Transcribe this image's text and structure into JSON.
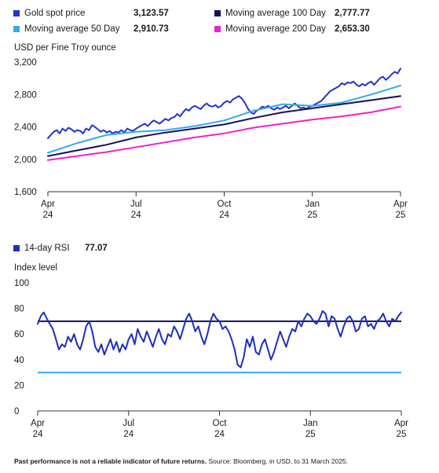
{
  "colors": {
    "gold_spot": "#2233cc",
    "ma50": "#33aaee",
    "ma100": "#12125a",
    "ma200": "#ee22cc",
    "rsi": "#1e2dbf",
    "rsi_upper": "#12125a",
    "rsi_lower": "#33aaee",
    "axis": "#333333"
  },
  "footnote": {
    "bold": "Past performance is not a reliable indicator of future returns.",
    "text": " Source: Bloomberg, in USD, to 31 March 2025."
  },
  "chart_data": [
    {
      "type": "line",
      "title": "",
      "ylabel": "USD per Fine Troy ounce",
      "ylim": [
        1600,
        3200
      ],
      "yticks": [
        "1,600",
        "2,000",
        "2,400",
        "2,800",
        "3,200"
      ],
      "ytick_values": [
        1600,
        2000,
        2400,
        2800,
        3200
      ],
      "xlim": [
        0,
        12
      ],
      "xticks": [
        {
          "x": 0,
          "label": [
            "Apr",
            "24"
          ]
        },
        {
          "x": 3,
          "label": [
            "Jul",
            "24"
          ]
        },
        {
          "x": 6,
          "label": [
            "Oct",
            "24"
          ]
        },
        {
          "x": 9,
          "label": [
            "Jan",
            "25"
          ]
        },
        {
          "x": 12,
          "label": [
            "Apr",
            "25"
          ]
        }
      ],
      "grid": false,
      "legend": [
        {
          "name": "Gold spot price",
          "value": "3,123.57",
          "color_key": "gold_spot"
        },
        {
          "name": "Moving average 100 Day",
          "value": "2,777.77",
          "color_key": "ma100"
        },
        {
          "name": "Moving average 50 Day",
          "value": "2,910.73",
          "color_key": "ma50"
        },
        {
          "name": "Moving average 200 Day",
          "value": "2,653.30",
          "color_key": "ma200"
        }
      ],
      "series": [
        {
          "key": "gold",
          "color_key": "gold_spot",
          "width": 2,
          "x": [
            0,
            0.1,
            0.2,
            0.3,
            0.4,
            0.5,
            0.6,
            0.7,
            0.8,
            0.9,
            1.0,
            1.1,
            1.2,
            1.3,
            1.4,
            1.5,
            1.6,
            1.7,
            1.8,
            1.9,
            2.0,
            2.1,
            2.2,
            2.3,
            2.4,
            2.5,
            2.6,
            2.7,
            2.8,
            2.9,
            3.0,
            3.1,
            3.2,
            3.3,
            3.4,
            3.5,
            3.6,
            3.7,
            3.8,
            3.9,
            4.0,
            4.1,
            4.2,
            4.3,
            4.4,
            4.5,
            4.6,
            4.7,
            4.8,
            4.9,
            5.0,
            5.1,
            5.2,
            5.3,
            5.4,
            5.5,
            5.6,
            5.7,
            5.8,
            5.9,
            6.0,
            6.1,
            6.2,
            6.3,
            6.4,
            6.5,
            6.6,
            6.7,
            6.8,
            6.9,
            7.0,
            7.1,
            7.2,
            7.3,
            7.4,
            7.5,
            7.6,
            7.7,
            7.8,
            7.9,
            8.0,
            8.1,
            8.2,
            8.3,
            8.4,
            8.5,
            8.6,
            8.7,
            8.8,
            8.9,
            9.0,
            9.1,
            9.2,
            9.3,
            9.4,
            9.5,
            9.6,
            9.7,
            9.8,
            9.9,
            10.0,
            10.1,
            10.2,
            10.3,
            10.4,
            10.5,
            10.6,
            10.7,
            10.8,
            10.9,
            11.0,
            11.1,
            11.2,
            11.3,
            11.4,
            11.5,
            11.6,
            11.7,
            11.8,
            11.9,
            12.0
          ],
          "y": [
            2260,
            2300,
            2340,
            2360,
            2320,
            2380,
            2350,
            2390,
            2370,
            2340,
            2360,
            2350,
            2320,
            2380,
            2360,
            2420,
            2400,
            2370,
            2340,
            2360,
            2330,
            2350,
            2320,
            2340,
            2330,
            2360,
            2330,
            2380,
            2360,
            2350,
            2380,
            2400,
            2420,
            2440,
            2410,
            2450,
            2480,
            2460,
            2440,
            2470,
            2500,
            2480,
            2510,
            2520,
            2560,
            2530,
            2580,
            2620,
            2600,
            2640,
            2660,
            2640,
            2620,
            2660,
            2690,
            2660,
            2650,
            2670,
            2640,
            2660,
            2700,
            2720,
            2700,
            2740,
            2760,
            2780,
            2750,
            2700,
            2630,
            2580,
            2560,
            2600,
            2620,
            2650,
            2640,
            2660,
            2630,
            2610,
            2640,
            2620,
            2640,
            2660,
            2630,
            2660,
            2690,
            2660,
            2630,
            2640,
            2620,
            2650,
            2660,
            2680,
            2700,
            2720,
            2760,
            2800,
            2840,
            2860,
            2880,
            2900,
            2940,
            2920,
            2950,
            2940,
            2960,
            2920,
            2900,
            2930,
            2910,
            2940,
            2960,
            2920,
            2960,
            3000,
            3020,
            2980,
            3010,
            3050,
            3080,
            3060,
            3120
          ]
        },
        {
          "key": "ma50",
          "color_key": "ma50",
          "width": 2,
          "x": [
            0,
            1,
            2,
            3,
            4,
            5,
            6,
            7,
            8,
            9,
            10,
            11,
            12
          ],
          "y": [
            2080,
            2200,
            2300,
            2340,
            2360,
            2410,
            2480,
            2600,
            2680,
            2660,
            2700,
            2800,
            2910
          ]
        },
        {
          "key": "ma100",
          "color_key": "ma100",
          "width": 2,
          "x": [
            0,
            1,
            2,
            3,
            4,
            5,
            6,
            7,
            8,
            9,
            10,
            11,
            12
          ],
          "y": [
            2040,
            2110,
            2180,
            2270,
            2330,
            2380,
            2430,
            2510,
            2580,
            2630,
            2680,
            2730,
            2780
          ]
        },
        {
          "key": "ma200",
          "color_key": "ma200",
          "width": 2,
          "x": [
            0,
            1,
            2,
            3,
            4,
            5,
            6,
            7,
            8,
            9,
            10,
            11,
            12
          ],
          "y": [
            1990,
            2040,
            2090,
            2150,
            2210,
            2270,
            2320,
            2390,
            2440,
            2490,
            2530,
            2580,
            2650
          ]
        }
      ]
    },
    {
      "type": "line",
      "title": "",
      "ylabel": "Index level",
      "ylim": [
        0,
        100
      ],
      "yticks": [
        "0",
        "20",
        "40",
        "60",
        "80",
        "100"
      ],
      "ytick_values": [
        0,
        20,
        40,
        60,
        80,
        100
      ],
      "xlim": [
        0,
        12
      ],
      "xticks": [
        {
          "x": 0,
          "label": [
            "Apr",
            "24"
          ]
        },
        {
          "x": 3,
          "label": [
            "Jul",
            "24"
          ]
        },
        {
          "x": 6,
          "label": [
            "Oct",
            "24"
          ]
        },
        {
          "x": 9,
          "label": [
            "Jan",
            "25"
          ]
        },
        {
          "x": 12,
          "label": [
            "Apr",
            "25"
          ]
        }
      ],
      "grid": false,
      "legend": [
        {
          "name": "14-day RSI",
          "value": "77.07",
          "color_key": "rsi"
        }
      ],
      "hlines": [
        {
          "y": 70,
          "color_key": "rsi_upper"
        },
        {
          "y": 30,
          "color_key": "rsi_lower"
        }
      ],
      "series": [
        {
          "key": "rsi",
          "color_key": "rsi",
          "width": 2,
          "x": [
            0,
            0.1,
            0.2,
            0.3,
            0.4,
            0.5,
            0.6,
            0.7,
            0.8,
            0.9,
            1.0,
            1.1,
            1.2,
            1.3,
            1.4,
            1.5,
            1.6,
            1.7,
            1.8,
            1.9,
            2.0,
            2.1,
            2.2,
            2.3,
            2.4,
            2.5,
            2.6,
            2.7,
            2.8,
            2.9,
            3.0,
            3.1,
            3.2,
            3.3,
            3.4,
            3.5,
            3.6,
            3.7,
            3.8,
            3.9,
            4.0,
            4.1,
            4.2,
            4.3,
            4.4,
            4.5,
            4.6,
            4.7,
            4.8,
            4.9,
            5.0,
            5.1,
            5.2,
            5.3,
            5.4,
            5.5,
            5.6,
            5.7,
            5.8,
            5.9,
            6.0,
            6.1,
            6.2,
            6.3,
            6.4,
            6.5,
            6.6,
            6.7,
            6.8,
            6.9,
            7.0,
            7.1,
            7.2,
            7.3,
            7.4,
            7.5,
            7.6,
            7.7,
            7.8,
            7.9,
            8.0,
            8.1,
            8.2,
            8.3,
            8.4,
            8.5,
            8.6,
            8.7,
            8.8,
            8.9,
            9.0,
            9.1,
            9.2,
            9.3,
            9.4,
            9.5,
            9.6,
            9.7,
            9.8,
            9.9,
            10.0,
            10.1,
            10.2,
            10.3,
            10.4,
            10.5,
            10.6,
            10.7,
            10.8,
            10.9,
            11.0,
            11.1,
            11.2,
            11.3,
            11.4,
            11.5,
            11.6,
            11.7,
            11.8,
            11.9,
            12.0
          ],
          "y": [
            68,
            74,
            77,
            72,
            68,
            64,
            56,
            48,
            52,
            50,
            58,
            54,
            60,
            52,
            48,
            56,
            66,
            70,
            62,
            50,
            46,
            52,
            44,
            50,
            56,
            48,
            54,
            46,
            52,
            48,
            56,
            60,
            52,
            64,
            58,
            54,
            62,
            56,
            50,
            58,
            64,
            56,
            52,
            60,
            58,
            66,
            62,
            56,
            64,
            72,
            76,
            70,
            62,
            66,
            58,
            52,
            60,
            70,
            76,
            72,
            70,
            64,
            66,
            62,
            56,
            48,
            36,
            34,
            42,
            56,
            50,
            58,
            46,
            44,
            52,
            56,
            48,
            40,
            46,
            54,
            62,
            56,
            50,
            58,
            64,
            62,
            70,
            66,
            72,
            76,
            74,
            70,
            68,
            72,
            78,
            76,
            66,
            74,
            72,
            64,
            58,
            66,
            72,
            74,
            70,
            62,
            64,
            72,
            74,
            66,
            68,
            64,
            70,
            72,
            76,
            70,
            66,
            72,
            70,
            74,
            77
          ]
        }
      ]
    }
  ]
}
